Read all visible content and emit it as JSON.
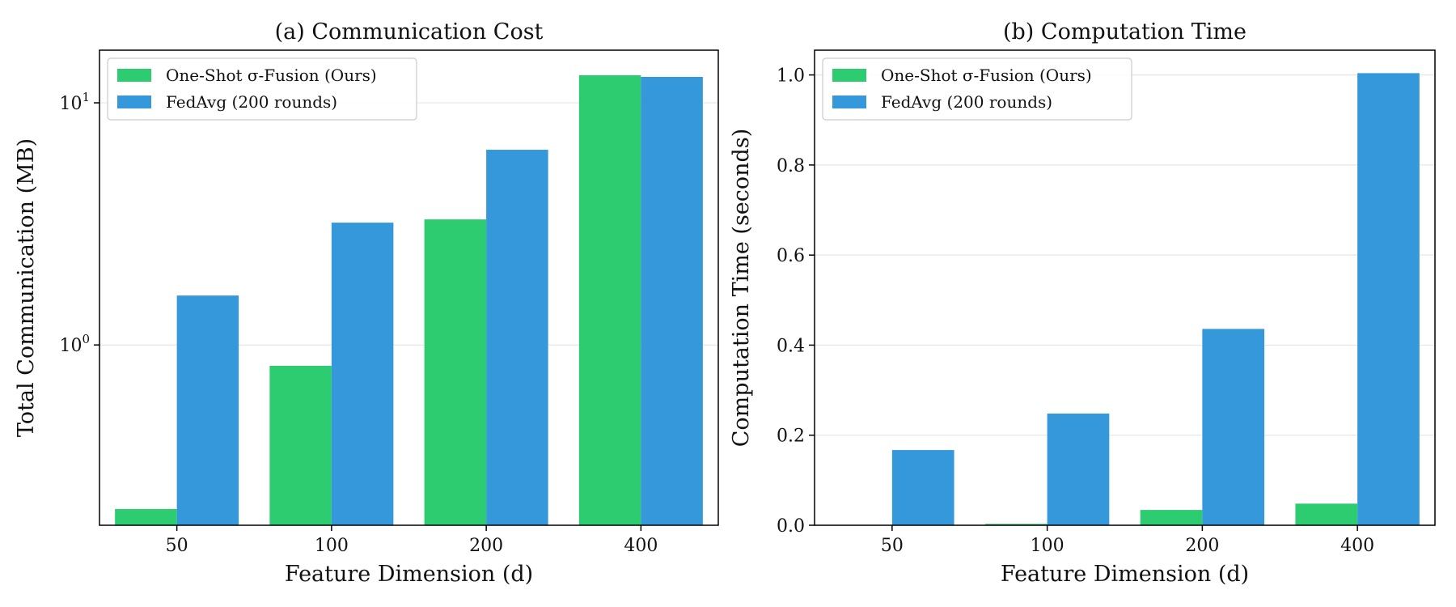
{
  "colors": {
    "one_shot": "#2ecc71",
    "fedavg": "#3498db",
    "grid": "#e6e6e6",
    "axis": "#000000"
  },
  "chart_data": [
    {
      "type": "bar",
      "title": "(a) Communication Cost",
      "xlabel": "Feature Dimension (d)",
      "ylabel": "Total Communication (MB)",
      "yscale": "log",
      "ylim": [
        0.18,
        16.5
      ],
      "yticks": [
        {
          "value": 1,
          "base": "10",
          "exp": "0"
        },
        {
          "value": 10,
          "base": "10",
          "exp": "1"
        }
      ],
      "grid": "y",
      "legend_position": "top-left",
      "categories": [
        "50",
        "100",
        "200",
        "400"
      ],
      "series": [
        {
          "name": "One-Shot σ-Fusion (Ours)",
          "color_key": "one_shot",
          "values": [
            0.21,
            0.82,
            3.3,
            13.0
          ]
        },
        {
          "name": "FedAvg (200 rounds)",
          "color_key": "fedavg",
          "values": [
            1.6,
            3.2,
            6.4,
            12.8
          ]
        }
      ]
    },
    {
      "type": "bar",
      "title": "(b) Computation Time",
      "xlabel": "Feature Dimension (d)",
      "ylabel": "Computation Time (seconds)",
      "yscale": "linear",
      "ylim": [
        0,
        1.055
      ],
      "yticks": [
        {
          "value": 0.0,
          "label": "0.0"
        },
        {
          "value": 0.2,
          "label": "0.2"
        },
        {
          "value": 0.4,
          "label": "0.4"
        },
        {
          "value": 0.6,
          "label": "0.6"
        },
        {
          "value": 0.8,
          "label": "0.8"
        },
        {
          "value": 1.0,
          "label": "1.0"
        }
      ],
      "grid": "y",
      "legend_position": "top-left",
      "categories": [
        "50",
        "100",
        "200",
        "400"
      ],
      "series": [
        {
          "name": "One-Shot σ-Fusion (Ours)",
          "color_key": "one_shot",
          "values": [
            0.0005,
            0.003,
            0.034,
            0.048
          ]
        },
        {
          "name": "FedAvg (200 rounds)",
          "color_key": "fedavg",
          "values": [
            0.167,
            0.248,
            0.436,
            1.004
          ]
        }
      ]
    }
  ]
}
